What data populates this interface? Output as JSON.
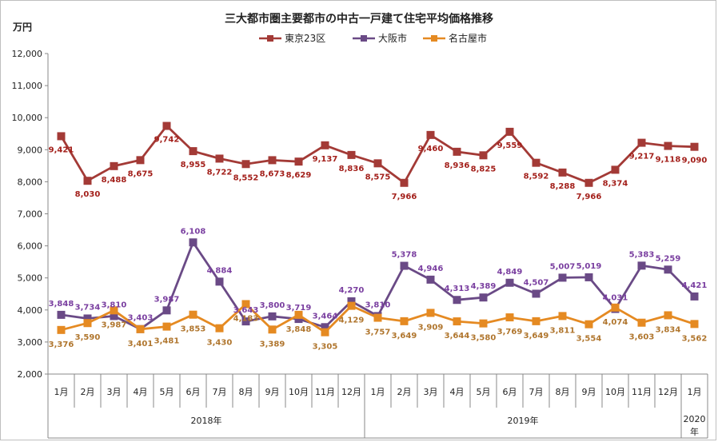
{
  "chart_data": {
    "type": "line",
    "title": "三大都市圏主要都市の中古一戸建て住宅平均価格推移",
    "ylabel": "万円",
    "ylim": [
      2000,
      12000
    ],
    "yticks": [
      "2,000",
      "3,000",
      "4,000",
      "5,000",
      "6,000",
      "7,000",
      "8,000",
      "9,000",
      "10,000",
      "11,000",
      "12,000"
    ],
    "categories": [
      "1月",
      "2月",
      "3月",
      "4月",
      "5月",
      "6月",
      "7月",
      "8月",
      "9月",
      "10月",
      "11月",
      "12月",
      "1月",
      "2月",
      "3月",
      "4月",
      "5月",
      "6月",
      "7月",
      "8月",
      "9月",
      "10月",
      "11月",
      "12月",
      "1月"
    ],
    "years": [
      {
        "label": "2018年",
        "start": 0,
        "end": 11
      },
      {
        "label": "2019年",
        "start": 12,
        "end": 23
      },
      {
        "label": "2020年",
        "start": 24,
        "end": 24
      }
    ],
    "series": [
      {
        "name": "東京23区",
        "color": "#a33a36",
        "marker": "square",
        "values": [
          9421,
          8030,
          8488,
          8675,
          9742,
          8955,
          8722,
          8552,
          8673,
          8629,
          9137,
          8836,
          8575,
          7966,
          9460,
          8936,
          8825,
          9559,
          8592,
          8288,
          7966,
          8374,
          9217,
          9118,
          9090
        ],
        "labels": [
          "9,421",
          "8,030",
          "8,488",
          "8,675",
          "9,742",
          "8,955",
          "8,722",
          "8,552",
          "8,673",
          "8,629",
          "9,137",
          "8,836",
          "8,575",
          "7,966",
          "9,460",
          "8,936",
          "8,825",
          "9,559",
          "8,592",
          "8,288",
          "7,966",
          "8,374",
          "9,217",
          "9,118",
          "9,090"
        ]
      },
      {
        "name": "大阪市",
        "color": "#6a4a86",
        "marker": "square",
        "values": [
          3848,
          3734,
          3810,
          3403,
          3987,
          6108,
          4884,
          3643,
          3800,
          3719,
          3464,
          4270,
          3810,
          5378,
          4946,
          4313,
          4389,
          4849,
          4507,
          5007,
          5019,
          4031,
          5383,
          5259,
          4421
        ],
        "labels": [
          "3,848",
          "3,734",
          "3,810",
          "3,403",
          "3,987",
          "6,108",
          "4,884",
          "3,643",
          "3,800",
          "3,719",
          "3,464",
          "4,270",
          "3,810",
          "5,378",
          "4,946",
          "4,313",
          "4,389",
          "4,849",
          "4,507",
          "5,007",
          "5,019",
          "4,031",
          "5,383",
          "5,259",
          "4,421"
        ]
      },
      {
        "name": "名古屋市",
        "color": "#e58a22",
        "marker": "square",
        "values": [
          3376,
          3590,
          3987,
          3401,
          3481,
          3853,
          3430,
          4183,
          3389,
          3848,
          3305,
          4129,
          3757,
          3649,
          3909,
          3644,
          3580,
          3769,
          3649,
          3811,
          3554,
          4074,
          3603,
          3834,
          3562
        ],
        "labels": [
          "3,376",
          "3,590",
          "3,987",
          "3,401",
          "3,481",
          "3,853",
          "3,430",
          "4,183",
          "3,389",
          "3,848",
          "3,305",
          "4,129",
          "3,757",
          "3,649",
          "3,909",
          "3,644",
          "3,580",
          "3,769",
          "3,649",
          "3,811",
          "3,554",
          "4,074",
          "3,603",
          "3,834",
          "3,562"
        ]
      }
    ]
  }
}
